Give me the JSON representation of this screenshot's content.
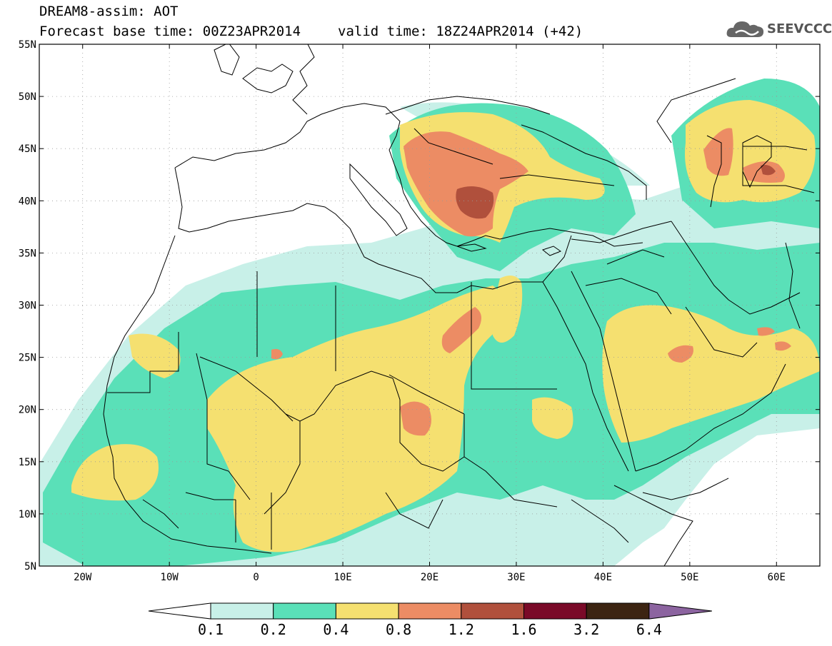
{
  "header": {
    "line1": "DREAM8-assim: AOT",
    "base_time": "Forecast base time: 00Z23APR2014",
    "valid_time": "valid time: 18Z24APR2014 (+42)"
  },
  "logo": {
    "text": "SEEVCCC",
    "icon": "cloud-logo-icon"
  },
  "map": {
    "lon_range": [
      -25,
      65
    ],
    "lat_range": [
      5,
      55
    ],
    "lat_ticks": [
      {
        "value": 55,
        "label": "55N"
      },
      {
        "value": 50,
        "label": "50N"
      },
      {
        "value": 45,
        "label": "45N"
      },
      {
        "value": 40,
        "label": "40N"
      },
      {
        "value": 35,
        "label": "35N"
      },
      {
        "value": 30,
        "label": "30N"
      },
      {
        "value": 25,
        "label": "25N"
      },
      {
        "value": 20,
        "label": "20N"
      },
      {
        "value": 15,
        "label": "15N"
      },
      {
        "value": 10,
        "label": "10N"
      },
      {
        "value": 5,
        "label": "5N"
      }
    ],
    "lon_ticks": [
      {
        "value": -20,
        "label": "20W"
      },
      {
        "value": -10,
        "label": "10W"
      },
      {
        "value": 0,
        "label": "0"
      },
      {
        "value": 10,
        "label": "10E"
      },
      {
        "value": 20,
        "label": "20E"
      },
      {
        "value": 30,
        "label": "30E"
      },
      {
        "value": 40,
        "label": "40E"
      },
      {
        "value": 50,
        "label": "50E"
      },
      {
        "value": 60,
        "label": "60E"
      }
    ],
    "grid": "dotted"
  },
  "colorbar": {
    "levels": [
      "0.1",
      "0.2",
      "0.4",
      "0.8",
      "1.2",
      "1.6",
      "3.2",
      "6.4"
    ],
    "colors": [
      "#ffffff",
      "#c8f0e8",
      "#5ae0b8",
      "#f5e070",
      "#ec8c64",
      "#b0503c",
      "#7a0a28",
      "#3c2412",
      "#8c64a0"
    ]
  }
}
